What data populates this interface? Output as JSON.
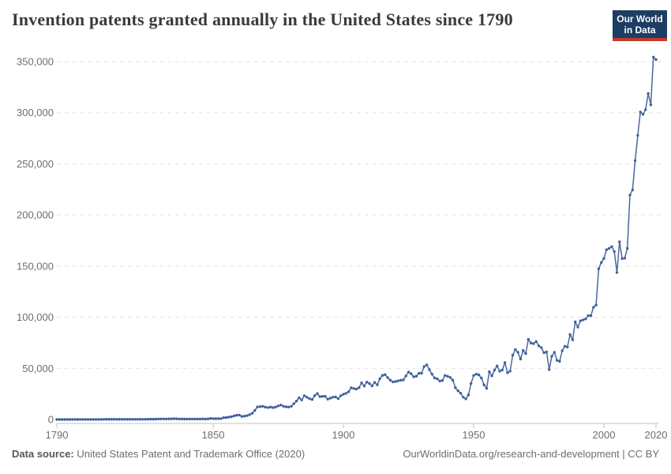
{
  "header": {
    "title": "Invention patents granted annually in the United States since 1790",
    "logo": {
      "line1": "Our World",
      "line2": "in Data",
      "bg_color": "#1d3d63",
      "accent_color": "#c0392b"
    }
  },
  "chart_data": {
    "type": "line",
    "title": "Invention patents granted annually in the United States since 1790",
    "xlabel": "",
    "ylabel": "",
    "legend": "none",
    "grid": "horizontal-dashed",
    "xlim": [
      1790,
      2022
    ],
    "ylim": [
      0,
      350000
    ],
    "x_start": 1790,
    "x_step": 1,
    "x_end": 2020,
    "x_ticks": {
      "values": [
        1790,
        1850,
        1900,
        1950,
        2000,
        2020
      ],
      "labels": [
        "1790",
        "1850",
        "1900",
        "1950",
        "2000",
        "2020"
      ]
    },
    "y_ticks": {
      "values": [
        0,
        50000,
        100000,
        150000,
        200000,
        250000,
        300000,
        350000
      ],
      "labels": [
        "0",
        "50,000",
        "100,000",
        "150,000",
        "200,000",
        "250,000",
        "300,000",
        "350,000"
      ]
    },
    "grid_color": "#e3e3e3",
    "axis_color": "#c3c3c3",
    "tick_label_color": "#6e6e6e",
    "series": [
      {
        "name": "Invention patents granted annually (United States)",
        "color": "#4a67a0",
        "marker_color": "#40609a",
        "values": [
          3,
          33,
          11,
          20,
          22,
          12,
          44,
          51,
          28,
          44,
          41,
          44,
          65,
          97,
          84,
          57,
          63,
          99,
          158,
          203,
          223,
          215,
          238,
          181,
          210,
          173,
          206,
          174,
          222,
          156,
          155,
          168,
          200,
          173,
          228,
          304,
          323,
          331,
          368,
          447,
          544,
          573,
          474,
          586,
          630,
          752,
          702,
          426,
          514,
          404,
          458,
          490,
          488,
          493,
          478,
          473,
          566,
          495,
          583,
          984,
          883,
          752,
          885,
          844,
          1755,
          1881,
          2302,
          2674,
          3455,
          4160,
          4357,
          3020,
          3214,
          3773,
          4630,
          6088,
          8863,
          12277,
          12526,
          12931,
          12137,
          11659,
          12180,
          11616,
          12230,
          13291,
          14169,
          12920,
          12345,
          12165,
          12902,
          15500,
          18091,
          21162,
          19118,
          23285,
          21767,
          20403,
          19551,
          23324,
          25313,
          22312,
          22647,
          22750,
          19855,
          20856,
          21822,
          22067,
          20377,
          23278,
          24644,
          25546,
          27119,
          31029,
          30258,
          29775,
          31170,
          35859,
          32735,
          36561,
          35141,
          32856,
          36198,
          33917,
          39892,
          43118,
          43892,
          40935,
          38452,
          36797,
          37060,
          37798,
          38369,
          38616,
          42574,
          46432,
          44733,
          41717,
          42357,
          45267,
          45226,
          51756,
          53458,
          48774,
          44420,
          40618,
          39782,
          37683,
          38061,
          43073,
          42238,
          41109,
          38449,
          31054,
          28053,
          25695,
          21803,
          20191,
          23963,
          35131,
          43040,
          44326,
          43616,
          40468,
          33809,
          30432,
          46817,
          42744,
          48330,
          52408,
          47170,
          48368,
          55691,
          45679,
          47375,
          62857,
          68406,
          65652,
          59104,
          67559,
          64429,
          78317,
          74810,
          74143,
          76278,
          71994,
          70226,
          65269,
          66102,
          48854,
          61819,
          65771,
          57888,
          56860,
          67200,
          71661,
          70860,
          82952,
          77924,
          95537,
          90365,
          96511,
          97444,
          98342,
          101676,
          101419,
          109645,
          111984,
          147520,
          153485,
          157494,
          166035,
          167331,
          169023,
          164290,
          143806,
          173772,
          157282,
          157772,
          167349,
          219614,
          224505,
          253155,
          277835,
          300678,
          298407,
          303049,
          318829,
          307759,
          354430,
          351993
        ]
      }
    ]
  },
  "footer": {
    "source_label": "Data source:",
    "source_text": " United States Patent and Trademark Office (2020)",
    "right_text": "OurWorldinData.org/research-and-development | CC BY"
  }
}
